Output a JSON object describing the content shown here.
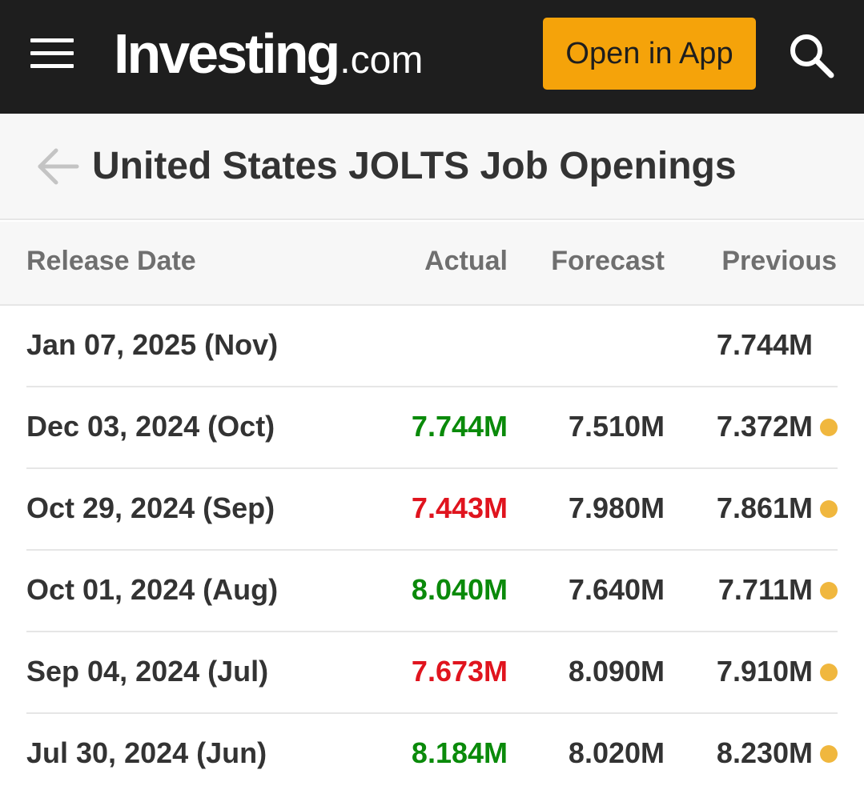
{
  "header": {
    "logo_main": "Investing",
    "logo_suffix": ".com",
    "open_app_label": "Open in App",
    "icons": {
      "menu": "hamburger-menu-icon",
      "search": "search-icon"
    },
    "colors": {
      "background": "#1e1e1e",
      "button": "#f5a30a"
    }
  },
  "page": {
    "title": "United States JOLTS Job Openings",
    "back_icon": "arrow-left-icon"
  },
  "table": {
    "columns": {
      "release_date": "Release Date",
      "actual": "Actual",
      "forecast": "Forecast",
      "previous": "Previous"
    },
    "rows": [
      {
        "date": "Jan 07, 2025 (Nov)",
        "actual": "",
        "actual_trend": "none",
        "forecast": "",
        "previous": "7.744M",
        "revised": false
      },
      {
        "date": "Dec 03, 2024 (Oct)",
        "actual": "7.744M",
        "actual_trend": "up",
        "forecast": "7.510M",
        "previous": "7.372M",
        "revised": true
      },
      {
        "date": "Oct 29, 2024 (Sep)",
        "actual": "7.443M",
        "actual_trend": "down",
        "forecast": "7.980M",
        "previous": "7.861M",
        "revised": true
      },
      {
        "date": "Oct 01, 2024 (Aug)",
        "actual": "8.040M",
        "actual_trend": "up",
        "forecast": "7.640M",
        "previous": "7.711M",
        "revised": true
      },
      {
        "date": "Sep 04, 2024 (Jul)",
        "actual": "7.673M",
        "actual_trend": "down",
        "forecast": "8.090M",
        "previous": "7.910M",
        "revised": true
      },
      {
        "date": "Jul 30, 2024 (Jun)",
        "actual": "8.184M",
        "actual_trend": "up",
        "forecast": "8.020M",
        "previous": "8.230M",
        "revised": true
      }
    ],
    "colors": {
      "up": "#0a8a0a",
      "down": "#e0141e",
      "neutral": "#333333",
      "revised_dot": "#f0b73e"
    }
  }
}
